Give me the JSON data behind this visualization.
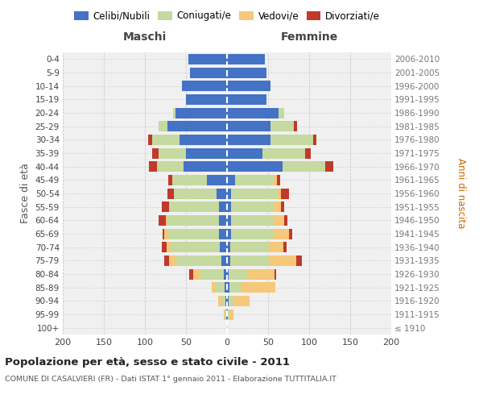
{
  "age_groups": [
    "100+",
    "95-99",
    "90-94",
    "85-89",
    "80-84",
    "75-79",
    "70-74",
    "65-69",
    "60-64",
    "55-59",
    "50-54",
    "45-49",
    "40-44",
    "35-39",
    "30-34",
    "25-29",
    "20-24",
    "15-19",
    "10-14",
    "5-9",
    "0-4"
  ],
  "birth_years": [
    "≤ 1910",
    "1911-1915",
    "1916-1920",
    "1921-1925",
    "1926-1930",
    "1931-1935",
    "1936-1940",
    "1941-1945",
    "1946-1950",
    "1951-1955",
    "1956-1960",
    "1961-1965",
    "1966-1970",
    "1971-1975",
    "1976-1980",
    "1981-1985",
    "1986-1990",
    "1991-1995",
    "1996-2000",
    "2001-2005",
    "2006-2010"
  ],
  "males_celibi": [
    0,
    1,
    2,
    3,
    4,
    7,
    9,
    10,
    10,
    10,
    13,
    25,
    53,
    50,
    58,
    73,
    63,
    50,
    55,
    45,
    47
  ],
  "males_coniugati": [
    0,
    2,
    5,
    12,
    28,
    55,
    60,
    62,
    63,
    60,
    52,
    42,
    32,
    33,
    33,
    10,
    3,
    0,
    0,
    0,
    0
  ],
  "males_vedovi": [
    0,
    1,
    4,
    4,
    9,
    9,
    5,
    4,
    2,
    1,
    0,
    0,
    0,
    0,
    0,
    0,
    0,
    0,
    0,
    0,
    0
  ],
  "males_divorziati": [
    0,
    0,
    0,
    0,
    5,
    5,
    5,
    2,
    8,
    8,
    8,
    5,
    10,
    8,
    5,
    0,
    0,
    0,
    0,
    0,
    0
  ],
  "females_nubili": [
    0,
    1,
    2,
    3,
    2,
    4,
    4,
    5,
    5,
    5,
    5,
    10,
    68,
    43,
    53,
    53,
    63,
    48,
    53,
    48,
    46
  ],
  "females_coniugate": [
    0,
    2,
    7,
    14,
    23,
    47,
    47,
    52,
    52,
    52,
    57,
    47,
    52,
    52,
    52,
    28,
    7,
    0,
    0,
    0,
    0
  ],
  "females_vedove": [
    0,
    5,
    18,
    42,
    33,
    33,
    18,
    18,
    13,
    9,
    4,
    4,
    0,
    0,
    0,
    0,
    0,
    0,
    0,
    0,
    0
  ],
  "females_divorziate": [
    0,
    0,
    0,
    0,
    2,
    7,
    4,
    4,
    4,
    4,
    9,
    4,
    9,
    7,
    4,
    4,
    0,
    0,
    0,
    0,
    0
  ],
  "colors": {
    "celibi_nubili": "#4472c4",
    "coniugati": "#c5d9a0",
    "vedovi": "#f5c87a",
    "divorziati": "#c0392b"
  },
  "xlim": 200,
  "title": "Popolazione per età, sesso e stato civile - 2011",
  "subtitle": "COMUNE DI CASALVIERI (FR) - Dati ISTAT 1° gennaio 2011 - Elaborazione TUTTITALIA.IT",
  "ylabel_left": "Fasce di età",
  "ylabel_right": "Anni di nascita",
  "label_maschi": "Maschi",
  "label_femmine": "Femmine",
  "legend_labels": [
    "Celibi/Nubili",
    "Coniugati/e",
    "Vedovi/e",
    "Divorziati/e"
  ],
  "background_color": "#ffffff",
  "plot_bg_color": "#f0f0f0",
  "grid_color": "#cccccc"
}
